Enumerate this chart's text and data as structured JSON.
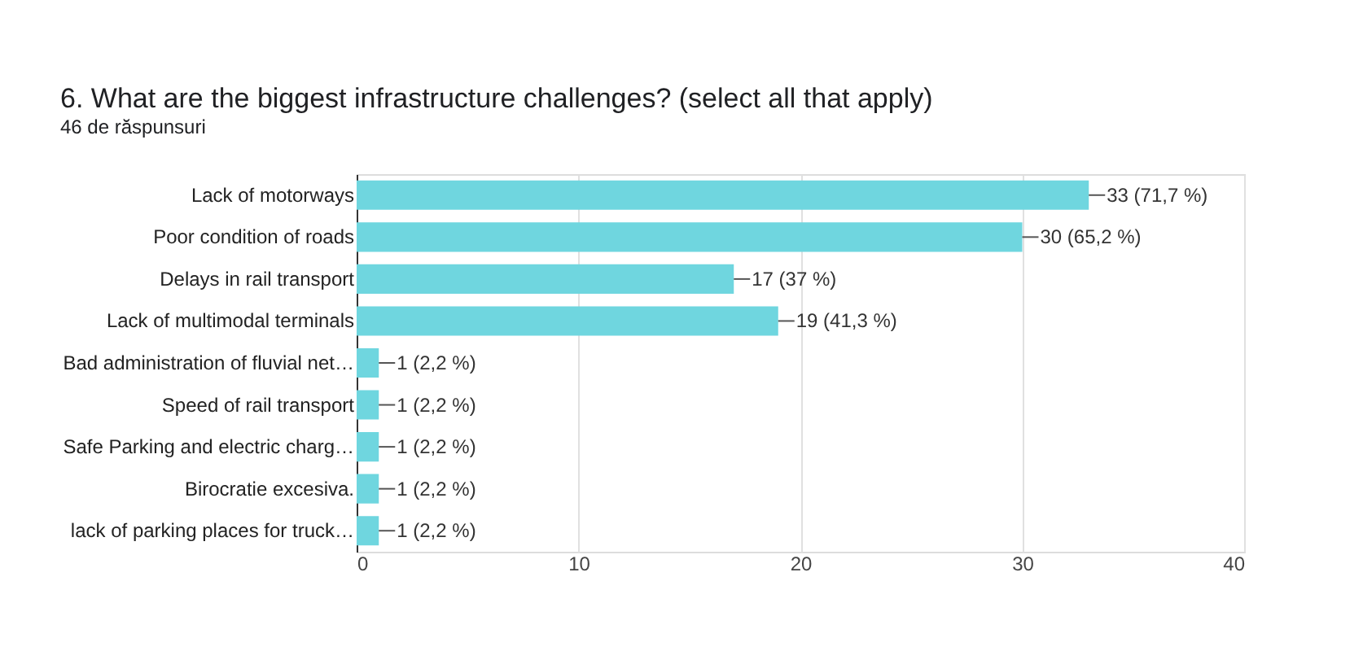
{
  "chart_data": {
    "type": "bar",
    "orientation": "horizontal",
    "title": "6. What are the biggest infrastructure challenges? (select all that apply)",
    "subtitle": "46 de răspunsuri",
    "categories": [
      "Lack of motorways",
      "Poor condition of roads",
      "Delays in rail transport",
      "Lack of multimodal terminals",
      "Bad administration of fluvial net…",
      "Speed of rail transport",
      "Safe Parking and electric charg…",
      "Birocratie excesiva.",
      "lack of parking places for truck…"
    ],
    "values": [
      33,
      30,
      17,
      19,
      1,
      1,
      1,
      1,
      1
    ],
    "value_labels": [
      "33 (71,7 %)",
      "30 (65,2 %)",
      "17 (37 %)",
      "19 (41,3 %)",
      "1 (2,2 %)",
      "1 (2,2 %)",
      "1 (2,2 %)",
      "1 (2,2 %)",
      "1 (2,2 %)"
    ],
    "color": "#6fd6df",
    "xlim": [
      0,
      40
    ],
    "xticks": [
      0,
      10,
      20,
      30,
      40
    ],
    "grid": "x"
  }
}
